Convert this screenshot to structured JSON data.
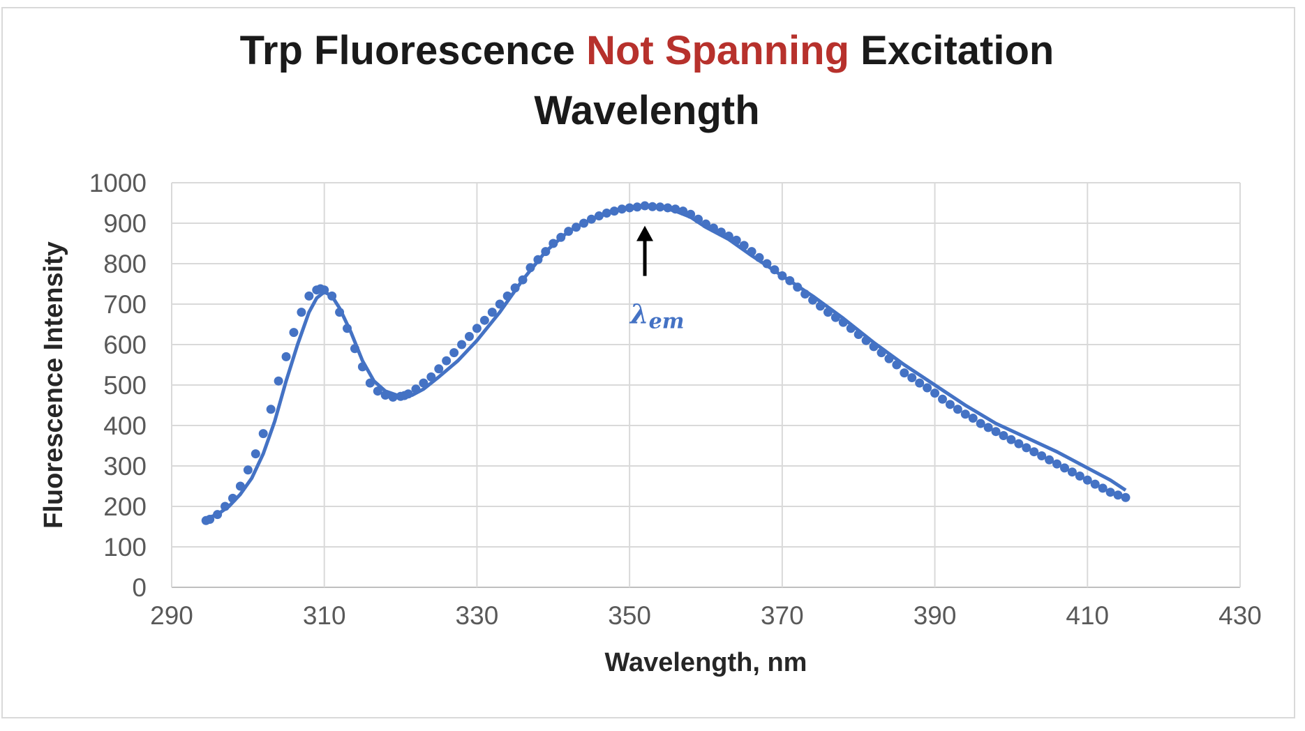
{
  "chart_data": {
    "type": "scatter",
    "title": {
      "part1": "Trp Fluorescence ",
      "highlight": "Not Spanning",
      "part2": " Excitation",
      "line2": "Wavelength"
    },
    "xlabel": "Wavelength, nm",
    "ylabel": "Fluorescence Intensity",
    "xlim": [
      290,
      430
    ],
    "ylim": [
      0,
      1000
    ],
    "x_ticks": [
      290,
      310,
      330,
      350,
      370,
      390,
      410,
      430
    ],
    "y_ticks": [
      0,
      100,
      200,
      300,
      400,
      500,
      600,
      700,
      800,
      900,
      1000
    ],
    "grid": true,
    "legend": "none",
    "series": [
      {
        "color": "#4472c4",
        "line_x": [
          294.5,
          296,
          297.5,
          299,
          300.5,
          302,
          303.5,
          305,
          306.5,
          308,
          309,
          310,
          311,
          312,
          313.5,
          315,
          316.5,
          318,
          319.5,
          320.5,
          321.5,
          323,
          325,
          327.5,
          330,
          333,
          336,
          339,
          342,
          345,
          348,
          351,
          352,
          354,
          356,
          358,
          360,
          363,
          366,
          370,
          374,
          378,
          382,
          386,
          390,
          394,
          398,
          402,
          406,
          410,
          413,
          415
        ],
        "line_y": [
          170,
          180,
          200,
          230,
          270,
          330,
          410,
          510,
          600,
          680,
          715,
          730,
          720,
          690,
          630,
          560,
          510,
          485,
          475,
          472,
          475,
          490,
          520,
          560,
          610,
          680,
          760,
          830,
          880,
          910,
          930,
          940,
          942,
          940,
          930,
          915,
          890,
          860,
          820,
          770,
          720,
          665,
          605,
          550,
          500,
          450,
          405,
          370,
          335,
          295,
          265,
          240
        ],
        "x": [
          294.5,
          295,
          296,
          297,
          298,
          299,
          300,
          301,
          302,
          303,
          304,
          305,
          306,
          307,
          308,
          309,
          309.5,
          310,
          311,
          312,
          313,
          314,
          315,
          316,
          317,
          318,
          319,
          320,
          320.5,
          321,
          322,
          323,
          324,
          325,
          326,
          327,
          328,
          329,
          330,
          331,
          332,
          333,
          334,
          335,
          336,
          337,
          338,
          339,
          340,
          341,
          342,
          343,
          344,
          345,
          346,
          347,
          348,
          349,
          350,
          351,
          352,
          353,
          354,
          355,
          356,
          357,
          358,
          359,
          360,
          361,
          362,
          363,
          364,
          365,
          366,
          367,
          368,
          369,
          370,
          371,
          372,
          373,
          374,
          375,
          376,
          377,
          378,
          379,
          380,
          381,
          382,
          383,
          384,
          385,
          386,
          387,
          388,
          389,
          390,
          391,
          392,
          393,
          394,
          395,
          396,
          397,
          398,
          399,
          400,
          401,
          402,
          403,
          404,
          405,
          406,
          407,
          408,
          409,
          410,
          411,
          412,
          413,
          414,
          415
        ],
        "y": [
          165,
          168,
          180,
          200,
          220,
          250,
          290,
          330,
          380,
          440,
          510,
          570,
          630,
          680,
          720,
          735,
          738,
          735,
          720,
          680,
          640,
          590,
          545,
          505,
          485,
          475,
          470,
          472,
          474,
          478,
          490,
          505,
          520,
          540,
          560,
          580,
          600,
          620,
          640,
          660,
          680,
          700,
          720,
          740,
          760,
          790,
          810,
          830,
          850,
          865,
          880,
          890,
          900,
          910,
          918,
          925,
          930,
          935,
          938,
          940,
          943,
          941,
          940,
          938,
          935,
          930,
          922,
          910,
          898,
          888,
          878,
          868,
          858,
          845,
          830,
          815,
          800,
          785,
          770,
          758,
          742,
          725,
          710,
          695,
          680,
          667,
          655,
          640,
          625,
          610,
          595,
          580,
          565,
          550,
          530,
          518,
          505,
          493,
          480,
          465,
          452,
          440,
          428,
          418,
          405,
          395,
          385,
          375,
          365,
          355,
          345,
          335,
          325,
          315,
          305,
          295,
          285,
          275,
          265,
          255,
          245,
          235,
          228,
          222
        ]
      }
    ],
    "annotation": {
      "x": 352,
      "y": 942,
      "label_main": "λ",
      "label_sub": "em"
    }
  }
}
